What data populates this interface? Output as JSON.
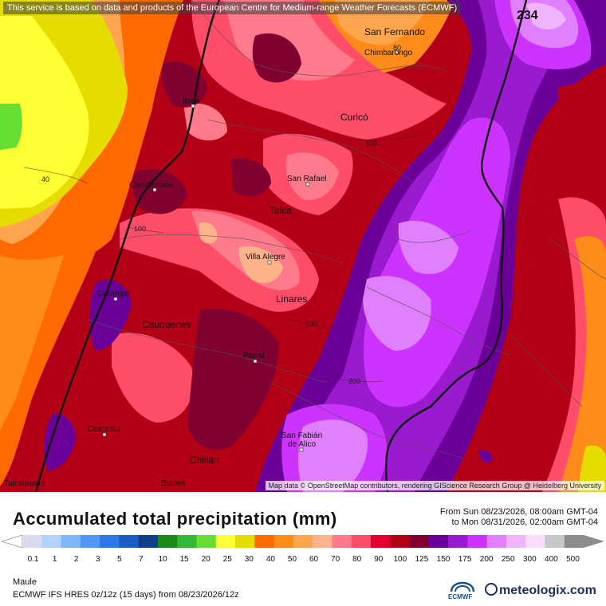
{
  "header": {
    "disclaimer": "This service is based on data and products of the European Centre for Medium-range Weather Forecasts (ECMWF)"
  },
  "map": {
    "attribution": "Map data © OpenStreetMap contributors, rendering GIScience Research Group @ Heidelberg University",
    "cities": {
      "san_fernando": "San Fernando",
      "chimbarongo": "Chimbarongo",
      "iloca": "Iloca",
      "curico": "Curicó",
      "san_rafael": "San Rafael",
      "constitucion": "Constitución",
      "talca": "Talca",
      "villa_alegre": "Villa Alegre",
      "curanipe": "Curanipe",
      "linares": "Linares",
      "cauquenes": "Cauquenes",
      "parral": "Parral",
      "coelemu": "Coelemu",
      "san_fabian_1": "San Fabián",
      "san_fabian_2": "de Alico",
      "chillan": "Chillán",
      "talcahuano": "Talcahuano",
      "bulnes": "Bulnes"
    },
    "contour_labels": {
      "c40": "40",
      "c80": "80",
      "c100a": "100",
      "c100b": "100",
      "c100c": "100",
      "c200": "200",
      "max": "234"
    }
  },
  "legend": {
    "title": "Accumulated total precipitation (mm)",
    "period_from": "From Sun 08/23/2026, 08:00am GMT-04",
    "period_to": "to Mon 08/31/2026, 02:00am GMT-04",
    "ticks": [
      "0.1",
      "1",
      "2",
      "3",
      "5",
      "7",
      "10",
      "15",
      "20",
      "25",
      "30",
      "40",
      "50",
      "60",
      "70",
      "80",
      "90",
      "100",
      "125",
      "150",
      "175",
      "200",
      "250",
      "300",
      "400",
      "500"
    ],
    "colors": [
      "#d9d9ef",
      "#b4d2ff",
      "#7db6ff",
      "#4f98f5",
      "#2a79e6",
      "#1a5ec4",
      "#0f3f8c",
      "#1a8a1a",
      "#33b833",
      "#66dd33",
      "#ffff33",
      "#e6dd00",
      "#ff6a00",
      "#ff8c1a",
      "#ffa54d",
      "#ffb38a",
      "#ff7a8a",
      "#ff4d6a",
      "#e6002e",
      "#b30017",
      "#800030",
      "#6b0099",
      "#9a1acf",
      "#cc33ff",
      "#e080ff",
      "#f0b3ff",
      "#f8ddff",
      "#c8c8c8",
      "#8c8c8c"
    ]
  },
  "footer": {
    "region": "Maule",
    "model": "ECMWF IFS HRES 0z/12z (15 days) from 08/23/2026/12z",
    "ecmwf_label": "ECMWF",
    "brand": "meteologix.com"
  }
}
